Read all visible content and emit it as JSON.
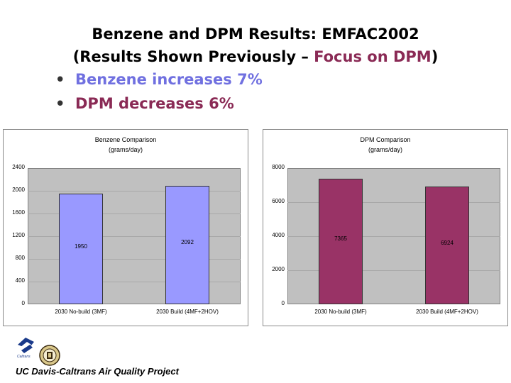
{
  "slide": {
    "title_line1": "Benzene and DPM Results:  EMFAC2002",
    "title_line2_a": "(Results Shown Previously – ",
    "title_line2_b": "Focus on DPM",
    "title_line2_c": ")",
    "bullets": [
      "Benzene increases 7%",
      "DPM decreases 6%"
    ],
    "footer": "UC Davis-Caltrans Air Quality Project",
    "logo_text": "Caltrans"
  },
  "colors": {
    "benzene": "#9999ff",
    "dpm": "#993366",
    "plot_bg": "#c0c0c0",
    "accent_dpm": "#8a2a55",
    "accent_benzene": "#7070e0"
  },
  "chart_data": [
    {
      "type": "bar",
      "title": "Benzene Comparison",
      "subtitle": "(grams/day)",
      "categories": [
        "2030 No-build (3MF)",
        "2030 Build (4MF+2HOV)"
      ],
      "values": [
        1950,
        2092
      ],
      "value_labels": [
        "1950",
        "2092"
      ],
      "ylim": [
        0,
        2400
      ],
      "yticks": [
        "0",
        "400",
        "800",
        "1200",
        "1600",
        "2000",
        "2400"
      ],
      "grid": true,
      "color": "#9999ff"
    },
    {
      "type": "bar",
      "title": "DPM Comparison",
      "subtitle": "(grams/day)",
      "categories": [
        "2030 No-build (3MF)",
        "2030 Build (4MF+2HOV)"
      ],
      "values": [
        7365,
        6924
      ],
      "value_labels": [
        "7365",
        "6924"
      ],
      "ylim": [
        0,
        8000
      ],
      "yticks": [
        "0",
        "2000",
        "4000",
        "6000",
        "8000"
      ],
      "grid": true,
      "color": "#993366"
    }
  ]
}
